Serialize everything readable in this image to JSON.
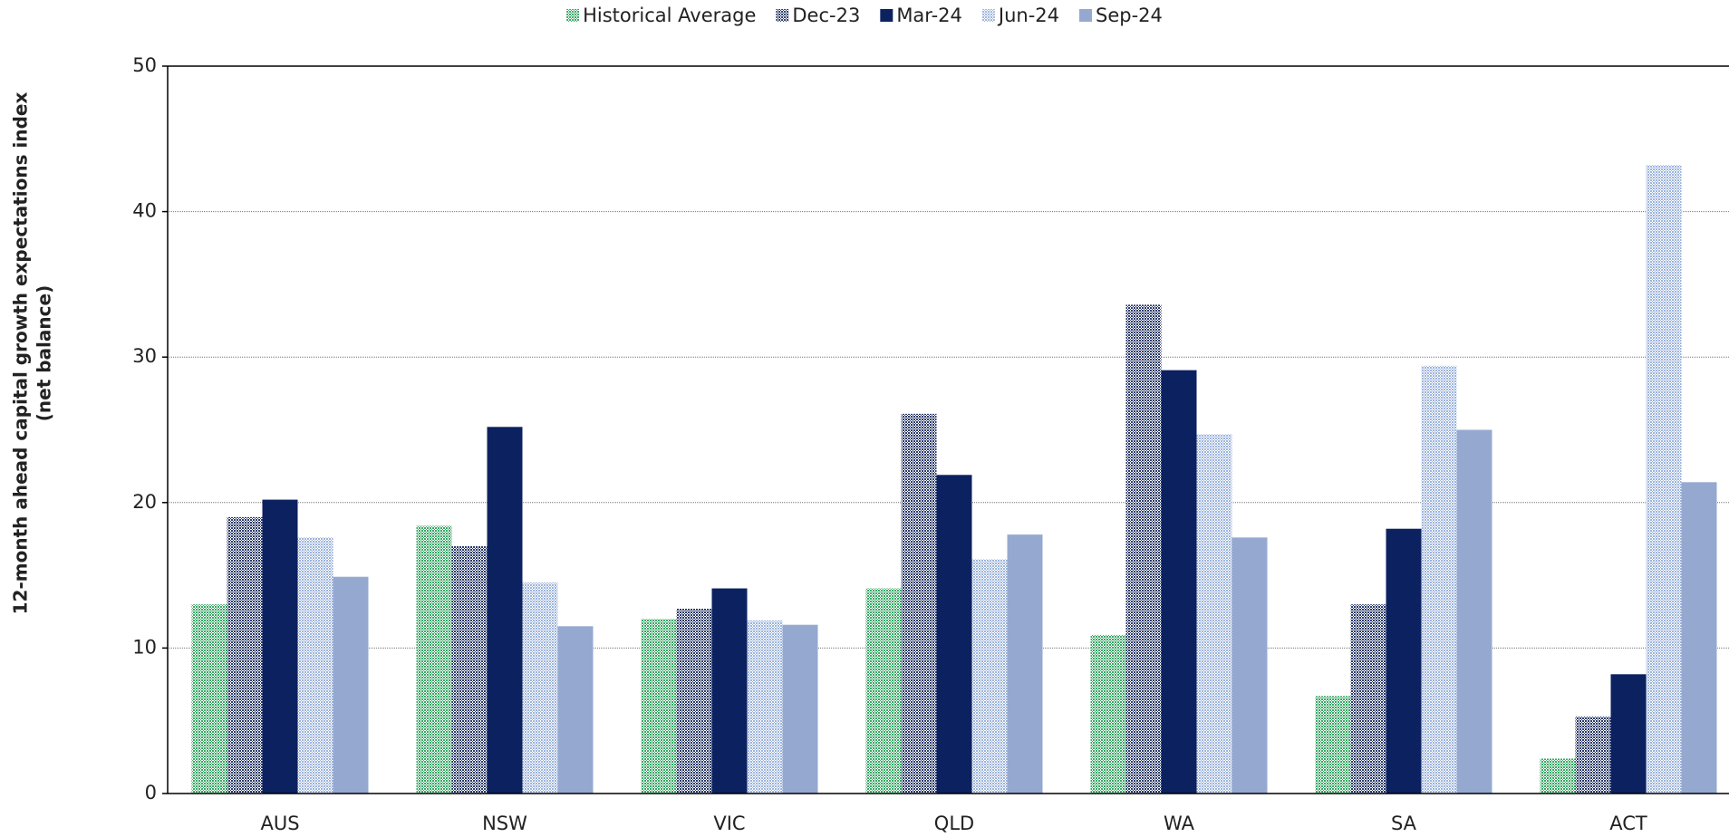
{
  "chart_data": {
    "type": "bar",
    "ylabel": [
      "12-month ahead capital growth expectations index",
      "(net balance)"
    ],
    "categories": [
      "AUS",
      "NSW",
      "VIC",
      "QLD",
      "WA",
      "SA",
      "ACT"
    ],
    "series": [
      {
        "name": "Historical Average",
        "color": "#3aa866",
        "pattern": "dots",
        "values": [
          13,
          18.4,
          12,
          14.1,
          10.9,
          6.7,
          2.4
        ]
      },
      {
        "name": "Dec-23",
        "color": "#2b3b6a",
        "pattern": "dots",
        "values": [
          19,
          17,
          12.7,
          26.1,
          33.6,
          13,
          5.3
        ]
      },
      {
        "name": "Mar-24",
        "color": "#0c2260",
        "values": [
          20.2,
          25.2,
          14.1,
          21.9,
          29.1,
          18.2,
          8.2
        ]
      },
      {
        "name": "Jun-24",
        "color": "#9db4dc",
        "pattern": "dots",
        "values": [
          17.6,
          14.5,
          11.9,
          16.1,
          24.7,
          29.4,
          43.2
        ]
      },
      {
        "name": "Sep-24",
        "color": "#95a9d0",
        "values": [
          14.9,
          11.5,
          11.6,
          17.8,
          17.6,
          25,
          21.4
        ]
      }
    ],
    "ylim": [
      0,
      50
    ],
    "yticks": [
      0,
      10,
      20,
      30,
      40,
      50
    ],
    "grid": true,
    "legend": "top"
  }
}
